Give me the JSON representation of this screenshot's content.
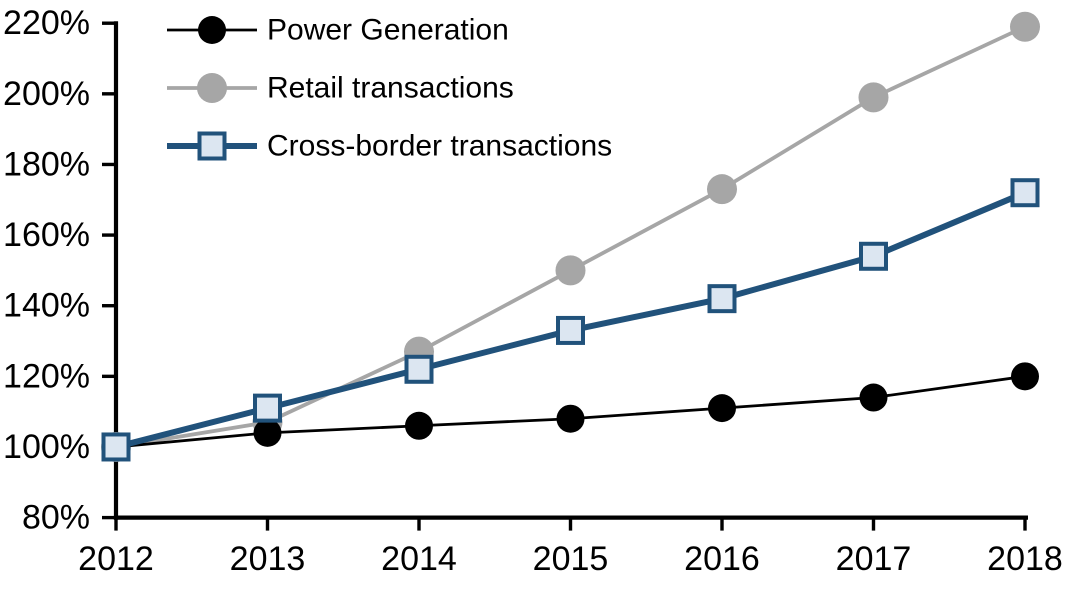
{
  "chart_data": {
    "type": "line",
    "title": "",
    "xlabel": "",
    "ylabel": "",
    "grid": false,
    "legend_position": "top-left",
    "background_color": "#ffffff",
    "axis_color": "#000000",
    "x": [
      2012,
      2013,
      2014,
      2015,
      2016,
      2017,
      2018
    ],
    "x_tick_labels": [
      "2012",
      "2013",
      "2014",
      "2015",
      "2016",
      "2017",
      "2018"
    ],
    "y_axis": {
      "min": 80,
      "max": 220,
      "step": 20,
      "tick_labels": [
        "80%",
        "100%",
        "120%",
        "140%",
        "160%",
        "180%",
        "200%",
        "220%"
      ],
      "unit": "%"
    },
    "series": [
      {
        "name": "Power Generation",
        "values": [
          100,
          104,
          106,
          108,
          111,
          114,
          120
        ],
        "line_color": "#000000",
        "line_width": 2.8,
        "marker": "circle",
        "marker_size": 28,
        "marker_fill": "#000000",
        "marker_stroke": "#000000",
        "marker_stroke_width": 0,
        "z": 2
      },
      {
        "name": "Retail transactions",
        "values": [
          100,
          107,
          127,
          150,
          173,
          199,
          219
        ],
        "line_color": "#a6a6a6",
        "line_width": 3.8,
        "marker": "circle",
        "marker_size": 30,
        "marker_fill": "#a6a6a6",
        "marker_stroke": "#a6a6a6",
        "marker_stroke_width": 0,
        "z": 1
      },
      {
        "name": "Cross-border transactions",
        "values": [
          100,
          111,
          122,
          133,
          142,
          154,
          172
        ],
        "line_color": "#21527b",
        "line_width": 6,
        "marker": "square",
        "marker_size": 25,
        "marker_fill": "#dce6f1",
        "marker_stroke": "#21527b",
        "marker_stroke_width": 4,
        "z": 3
      }
    ]
  }
}
